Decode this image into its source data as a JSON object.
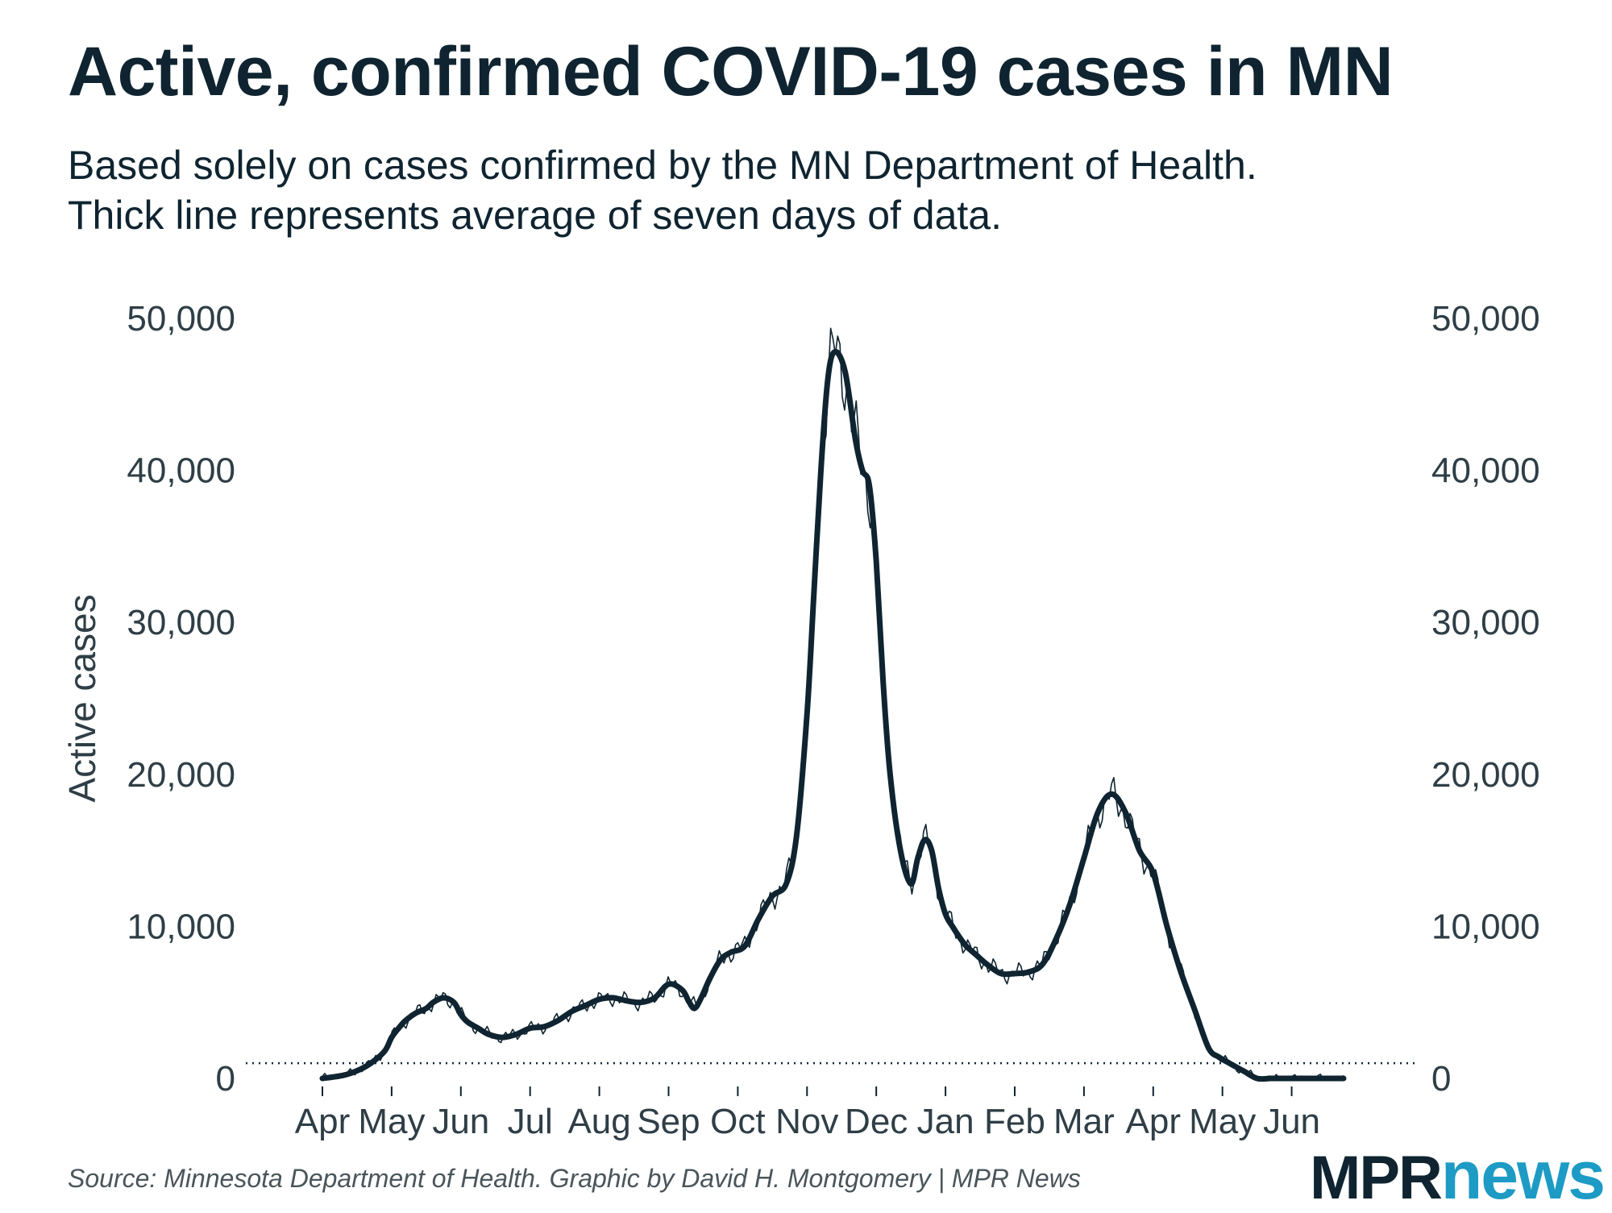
{
  "header": {
    "title": "Active, confirmed COVID-19 cases in MN",
    "subtitle_line1": "Based solely on cases confirmed by the MN Department of Health.",
    "subtitle_line2": "Thick line represents average of seven days of data."
  },
  "footer": {
    "source": "Source: Minnesota Department of Health. Graphic by David H. Montgomery | MPR News",
    "logo_mpr": "MPR",
    "logo_news": "news"
  },
  "colors": {
    "line": "#0f2430",
    "text": "#0f2430",
    "axis_text": "#2f3e46",
    "logo_accent": "#1d9bc4"
  },
  "chart_data": {
    "type": "line",
    "title": "Active, confirmed COVID-19 cases in MN",
    "xlabel": "",
    "ylabel": "Active cases",
    "ylim": [
      0,
      50000
    ],
    "yticks": [
      0,
      10000,
      20000,
      30000,
      40000,
      50000
    ],
    "ytick_labels": [
      "0",
      "10,000",
      "20,000",
      "30,000",
      "40,000",
      "50,000"
    ],
    "xlim": [
      0,
      15.6
    ],
    "x_unit": "months since April 1 2020",
    "xtick_labels": [
      "Apr",
      "May",
      "Jun",
      "Jul",
      "Aug",
      "Sep",
      "Oct",
      "Nov",
      "Dec",
      "Jan",
      "Feb",
      "Mar",
      "Apr",
      "May",
      "Jun"
    ],
    "xtick_positions": [
      0,
      1,
      2,
      3,
      4,
      5,
      6,
      7,
      8,
      9,
      10,
      11,
      12,
      13,
      14
    ],
    "reference_line": 1000,
    "grid": false,
    "series": [
      {
        "name": "7-day average",
        "style": "thick",
        "x": [
          0.0,
          0.3,
          0.5,
          0.7,
          0.9,
          1.0,
          1.1,
          1.2,
          1.35,
          1.5,
          1.6,
          1.75,
          1.9,
          2.0,
          2.1,
          2.25,
          2.4,
          2.6,
          2.8,
          3.0,
          3.2,
          3.4,
          3.6,
          3.8,
          4.0,
          4.2,
          4.4,
          4.6,
          4.8,
          5.0,
          5.2,
          5.3,
          5.4,
          5.6,
          5.75,
          5.9,
          6.1,
          6.3,
          6.5,
          6.7,
          6.85,
          7.0,
          7.1,
          7.2,
          7.3,
          7.4,
          7.55,
          7.7,
          7.8,
          7.9,
          8.0,
          8.1,
          8.2,
          8.35,
          8.5,
          8.6,
          8.7,
          8.8,
          8.9,
          9.0,
          9.1,
          9.2,
          9.3,
          9.45,
          9.6,
          9.8,
          10.0,
          10.2,
          10.4,
          10.6,
          10.8,
          11.0,
          11.2,
          11.4,
          11.6,
          11.8,
          12.0,
          12.2,
          12.4,
          12.6,
          12.8,
          12.95,
          13.1,
          13.3,
          13.5,
          13.7,
          13.9,
          14.1,
          14.2,
          14.35,
          14.5,
          14.65,
          14.75
        ],
        "values": [
          0,
          200,
          500,
          1000,
          1800,
          2700,
          3300,
          3800,
          4300,
          4600,
          5000,
          5300,
          5000,
          4200,
          3700,
          3300,
          2900,
          2700,
          2900,
          3300,
          3400,
          3800,
          4400,
          4800,
          5200,
          5300,
          5100,
          5000,
          5300,
          6200,
          5800,
          5000,
          4700,
          6600,
          7800,
          8300,
          8700,
          10500,
          12000,
          12800,
          16000,
          24000,
          32000,
          40000,
          46000,
          47800,
          46500,
          42000,
          40000,
          39000,
          34000,
          26000,
          20000,
          15000,
          12800,
          14500,
          15700,
          15000,
          12500,
          10800,
          10000,
          9300,
          8700,
          8100,
          7500,
          6900,
          6900,
          7000,
          7500,
          9200,
          11500,
          14500,
          17500,
          18700,
          17500,
          15000,
          13500,
          10000,
          7000,
          4500,
          2000,
          1400,
          1000,
          500,
          0,
          0,
          0,
          0,
          0,
          0,
          0,
          0,
          0
        ]
      }
    ]
  }
}
